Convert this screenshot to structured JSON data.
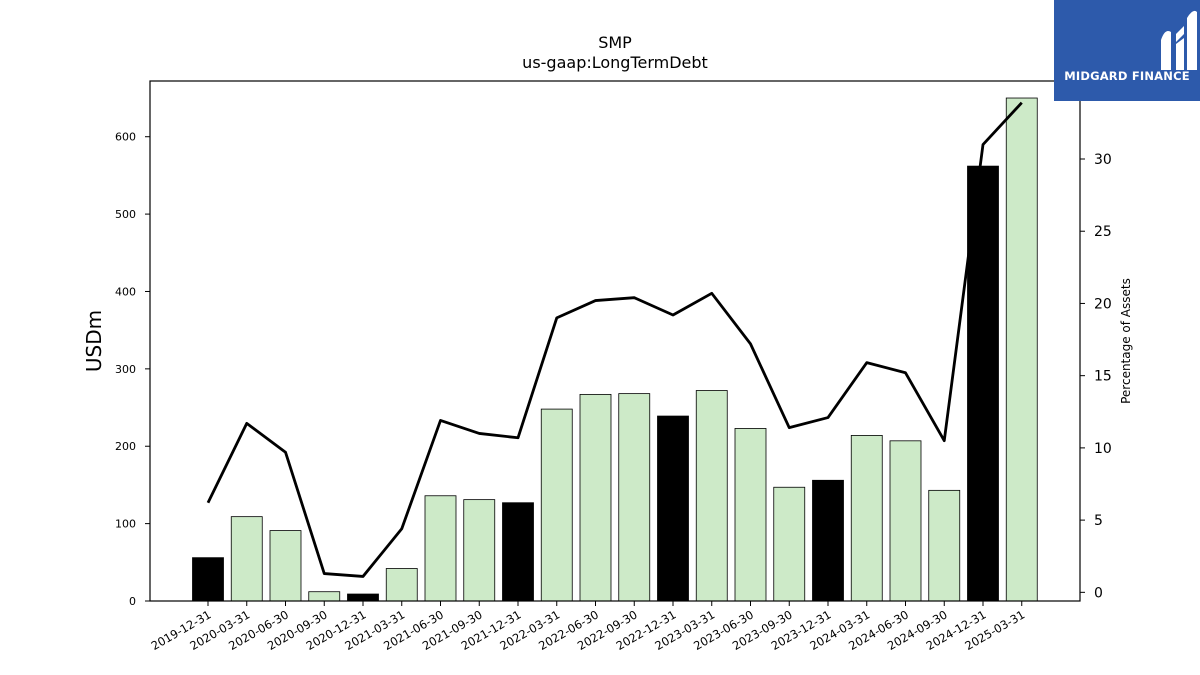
{
  "brand": {
    "name": "MIDGARD FINANCE",
    "bg_color": "#2d5aab"
  },
  "chart_data": {
    "type": "bar",
    "title": "SMP",
    "subtitle": "us-gaap:LongTermDebt",
    "ylabel": "USDm",
    "y2label": "Percentage of Assets",
    "ylim": [
      0,
      672
    ],
    "y2lim": [
      -0.6,
      35.4
    ],
    "yticks": [
      0,
      100,
      200,
      300,
      400,
      500,
      600
    ],
    "y2ticks": [
      0,
      5,
      10,
      15,
      20,
      25,
      30
    ],
    "categories": [
      "2019-12-31",
      "2020-03-31",
      "2020-06-30",
      "2020-09-30",
      "2020-12-31",
      "2021-03-31",
      "2021-06-30",
      "2021-09-30",
      "2021-12-31",
      "2022-03-31",
      "2022-06-30",
      "2022-09-30",
      "2022-12-31",
      "2023-03-31",
      "2023-06-30",
      "2023-09-30",
      "2023-12-31",
      "2024-03-31",
      "2024-06-30",
      "2024-09-30",
      "2024-12-31",
      "2025-03-31"
    ],
    "series": [
      {
        "kind": "bar",
        "values": [
          56,
          109,
          91,
          12,
          9,
          42,
          136,
          131,
          127,
          248,
          267,
          268,
          239,
          272,
          223,
          147,
          156,
          214,
          207,
          143,
          562,
          650
        ],
        "colors": [
          "#000000",
          "#cdeac8",
          "#cdeac8",
          "#cdeac8",
          "#000000",
          "#cdeac8",
          "#cdeac8",
          "#cdeac8",
          "#000000",
          "#cdeac8",
          "#cdeac8",
          "#cdeac8",
          "#000000",
          "#cdeac8",
          "#cdeac8",
          "#cdeac8",
          "#000000",
          "#cdeac8",
          "#cdeac8",
          "#cdeac8",
          "#000000",
          "#cdeac8"
        ]
      },
      {
        "kind": "line",
        "axis": "right",
        "color": "#000000",
        "values": [
          6.2,
          11.7,
          9.7,
          1.3,
          1.1,
          4.4,
          11.9,
          11.0,
          10.7,
          19.0,
          20.2,
          20.4,
          19.2,
          20.7,
          17.2,
          11.4,
          12.1,
          15.9,
          15.2,
          10.5,
          31.0,
          33.9
        ]
      }
    ],
    "grid": false,
    "legend": "none"
  }
}
